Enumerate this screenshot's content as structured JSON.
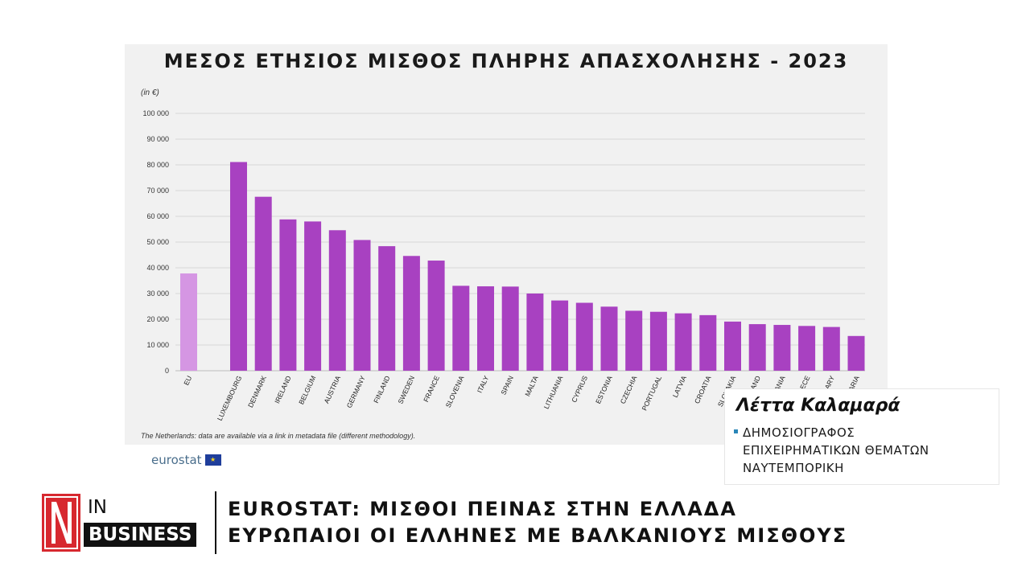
{
  "chart_data": {
    "type": "bar",
    "title": "ΜΕΣΟΣ ΕΤΗΣΙΟΣ ΜΙΣΘΟΣ ΠΛΗΡΗΣ ΑΠΑΣΧΟΛΗΣΗΣ - 2023",
    "ylabel": "(in €)",
    "ylim": [
      0,
      100000
    ],
    "yticks": [
      "0",
      "10 000",
      "20 000",
      "30 000",
      "40 000",
      "50 000",
      "60 000",
      "70 000",
      "80 000",
      "90 000",
      "100 000"
    ],
    "grid": true,
    "categories": [
      "EU",
      "LUXEMBOURG",
      "DENMARK",
      "IRELAND",
      "BELGIUM",
      "AUSTRIA",
      "GERMANY",
      "FINLAND",
      "SWEDEN",
      "FRANCE",
      "SLOVENIA",
      "ITALY",
      "SPAIN",
      "MALTA",
      "LITHUANIA",
      "CYPRUS",
      "ESTONIA",
      "CZECHIA",
      "PORTUGAL",
      "LATVIA",
      "CROATIA",
      "SLOVAKIA",
      "POLAND",
      "ROMANIA",
      "GREECE",
      "HUNGARY",
      "BULGARIA"
    ],
    "values": [
      37800,
      81100,
      67600,
      58800,
      58000,
      54600,
      50800,
      48400,
      44600,
      42800,
      33000,
      32800,
      32700,
      30000,
      27300,
      26400,
      24900,
      23300,
      22900,
      22300,
      21600,
      19100,
      18100,
      17800,
      17400,
      17000,
      13500
    ],
    "colors": {
      "eu": "#d596e3",
      "country": "#a841c1"
    },
    "footnote": "The Netherlands: data are available via a link in metadata file (different methodology)."
  },
  "source": {
    "logo_text": "eurostat",
    "flag_icon": "eu-flag-icon"
  },
  "byline": {
    "name": "Λέττα Καλαμαρά",
    "role_lines": [
      "ΔΗΜΟΣΙΟΓΡΑΦΟΣ",
      "ΕΠΙΧΕΙΡΗΜΑΤΙΚΩΝ ΘΕΜΑΤΩΝ",
      "ΝΑΥΤΕΜΠΟΡΙΚΗ"
    ]
  },
  "ticker": {
    "logo_letter": "N",
    "logo_in": "IN",
    "logo_business": "BUSINESS",
    "headline_1": "EUROSTAT: ΜΙΣΘΟΙ ΠΕΙΝΑΣ ΣΤΗΝ ΕΛΛΑΔΑ",
    "headline_2": "ΕΥΡΩΠΑΙΟΙ ΟΙ ΕΛΛΗΝΕΣ ΜΕ ΒΑΛΚΑΝΙΟΥΣ ΜΙΣΘΟΥΣ"
  }
}
